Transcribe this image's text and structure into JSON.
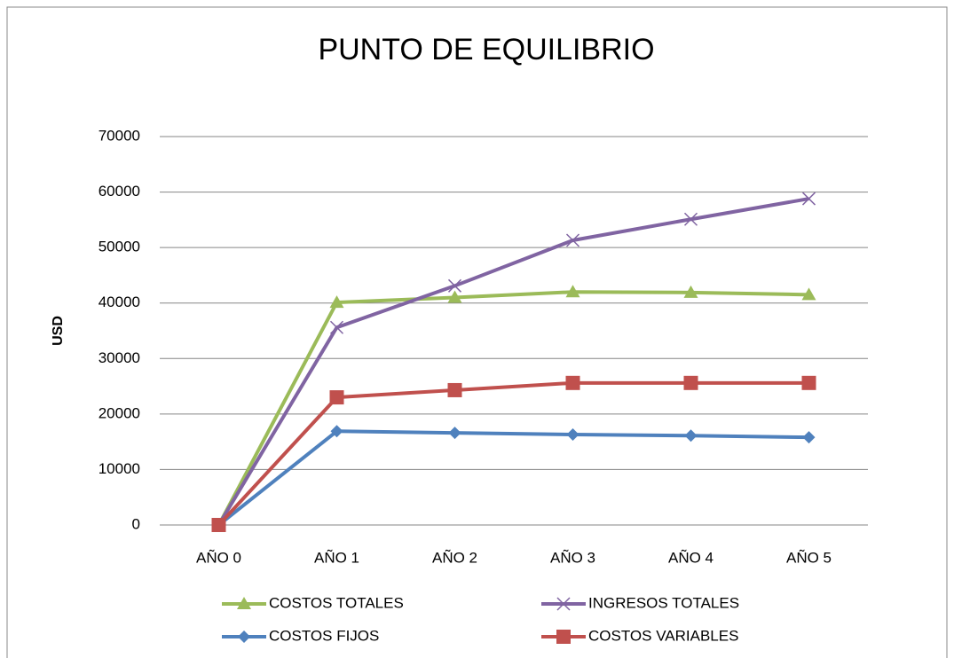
{
  "chart_data": {
    "type": "line",
    "title": "PUNTO DE EQUILIBRIO",
    "y_label": "USD",
    "categories": [
      "AÑO 0",
      "AÑO 1",
      "AÑO 2",
      "AÑO 3",
      "AÑO 4",
      "AÑO 5"
    ],
    "series": [
      {
        "name": "COSTOS TOTALES",
        "color": "#9bbb59",
        "marker": "triangle",
        "values": [
          0,
          40100,
          41000,
          42000,
          41900,
          41500
        ]
      },
      {
        "name": "INGRESOS TOTALES",
        "color": "#8064a2",
        "marker": "x",
        "values": [
          0,
          35600,
          43100,
          51300,
          55100,
          58800
        ]
      },
      {
        "name": "COSTOS FIJOS",
        "color": "#4f81bd",
        "marker": "diamond",
        "values": [
          0,
          16900,
          16600,
          16300,
          16100,
          15800
        ]
      },
      {
        "name": "COSTOS VARIABLES",
        "color": "#c0504d",
        "marker": "square",
        "values": [
          0,
          23000,
          24300,
          25600,
          25600,
          25600
        ]
      }
    ],
    "ylim": [
      0,
      70000
    ],
    "yticks": [
      0,
      10000,
      20000,
      30000,
      40000,
      50000,
      60000,
      70000
    ],
    "grid": true,
    "legend": "bottom"
  }
}
